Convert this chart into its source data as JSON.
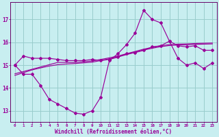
{
  "xlabel": "Windchill (Refroidissement éolien,°C)",
  "background_color": "#c8eef0",
  "line_color": "#990099",
  "grid_color": "#99cccc",
  "axis_color": "#660066",
  "xlim": [
    -0.5,
    23.5
  ],
  "ylim": [
    12.5,
    17.75
  ],
  "yticks": [
    13,
    14,
    15,
    16,
    17
  ],
  "xticks": [
    0,
    1,
    2,
    3,
    4,
    5,
    6,
    7,
    8,
    9,
    10,
    11,
    12,
    13,
    14,
    15,
    16,
    17,
    18,
    19,
    20,
    21,
    22,
    23
  ],
  "line_flat": [
    15.0,
    15.4,
    15.3,
    15.3,
    15.3,
    15.25,
    15.2,
    15.2,
    15.2,
    15.25,
    15.2,
    15.25,
    15.35,
    15.5,
    15.55,
    15.65,
    15.8,
    15.85,
    16.05,
    15.85,
    15.8,
    15.85,
    15.65,
    15.65
  ],
  "line_data": [
    15.0,
    14.6,
    14.6,
    14.1,
    13.5,
    13.3,
    13.1,
    12.9,
    12.85,
    13.0,
    13.6,
    15.2,
    15.5,
    15.9,
    16.4,
    17.4,
    17.0,
    16.85,
    16.05,
    15.3,
    15.0,
    15.1,
    14.85,
    15.1
  ],
  "line_reg1": [
    14.62,
    14.72,
    14.82,
    14.92,
    15.02,
    15.12,
    15.12,
    15.12,
    15.15,
    15.18,
    15.25,
    15.32,
    15.4,
    15.5,
    15.6,
    15.7,
    15.78,
    15.85,
    15.9,
    15.92,
    15.93,
    15.95,
    15.96,
    15.97
  ],
  "line_reg2": [
    14.55,
    14.67,
    14.79,
    14.88,
    14.96,
    15.02,
    15.05,
    15.07,
    15.1,
    15.13,
    15.2,
    15.28,
    15.36,
    15.46,
    15.56,
    15.66,
    15.74,
    15.81,
    15.86,
    15.88,
    15.89,
    15.91,
    15.92,
    15.93
  ]
}
